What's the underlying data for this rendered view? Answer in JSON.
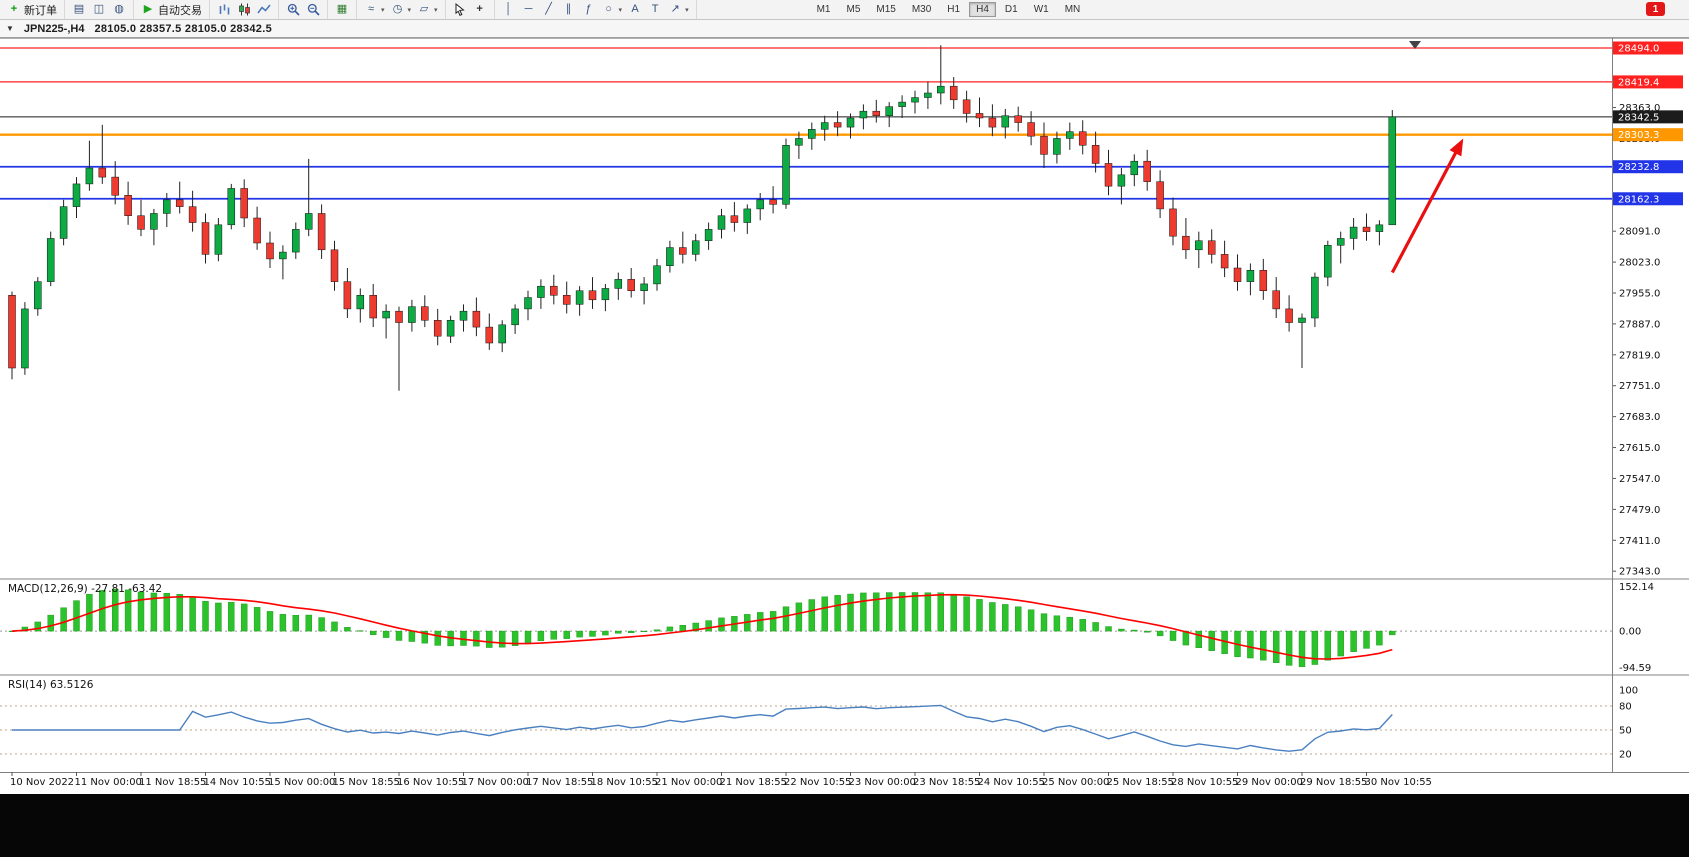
{
  "toolbar": {
    "new_order_label": "新订单",
    "auto_trading_label": "自动交易",
    "notification_count": "1",
    "active_timeframe": "H4",
    "timeframes": [
      "M1",
      "M5",
      "M15",
      "M30",
      "H1",
      "H4",
      "D1",
      "W1",
      "MN"
    ],
    "groups": [
      [
        {
          "name": "new-order",
          "glyph": "+",
          "color": "#0c9a0c",
          "label": "新订单"
        }
      ],
      [
        {
          "name": "print",
          "glyph": "▤"
        },
        {
          "name": "print-preview",
          "glyph": "◫"
        },
        {
          "name": "market-overview",
          "glyph": "◍"
        }
      ],
      [
        {
          "name": "auto-trading",
          "glyph": "▶",
          "color": "#1fa41f",
          "label": "自动交易"
        }
      ],
      [
        {
          "name": "bar-chart",
          "svg": "bars"
        },
        {
          "name": "candle-chart",
          "svg": "candles"
        },
        {
          "name": "line-chart",
          "svg": "line"
        }
      ],
      [
        {
          "name": "zoom-in",
          "svg": "zoom-in"
        },
        {
          "name": "zoom-out",
          "svg": "zoom-out"
        }
      ],
      [
        {
          "name": "tile-windows",
          "glyph": "▦",
          "color": "#2d7d2d"
        }
      ],
      [
        {
          "name": "indicators",
          "glyph": "≈",
          "dropdown": true
        },
        {
          "name": "periods",
          "glyph": "◷",
          "dropdown": true
        },
        {
          "name": "templates",
          "glyph": "▱",
          "dropdown": true
        }
      ],
      [
        {
          "name": "cursor",
          "svg": "cursor"
        },
        {
          "name": "crosshair",
          "glyph": "+",
          "color": "#333333"
        }
      ],
      [
        {
          "name": "vertical-line",
          "glyph": "│"
        },
        {
          "name": "horizontal-line",
          "glyph": "─"
        },
        {
          "name": "trendline",
          "glyph": "╱"
        },
        {
          "name": "channel",
          "glyph": "∥"
        },
        {
          "name": "fibonacci",
          "glyph": "ƒ"
        },
        {
          "name": "shapes",
          "glyph": "○",
          "dropdown": true
        },
        {
          "name": "text",
          "glyph": "A"
        },
        {
          "name": "text-label",
          "glyph": "T"
        },
        {
          "name": "arrows",
          "glyph": "↗",
          "dropdown": true
        }
      ]
    ],
    "one_click_glyph": "▼"
  },
  "chart_header": {
    "symbol_period": "JPN225-,H4",
    "ohlc_text": "28105.0 28357.5 28105.0 28342.5"
  },
  "colors": {
    "candle_up": "#0cab44",
    "candle_down": "#ee3b30",
    "macd_bar": "#2cc22c",
    "macd_signal": "#ff0000",
    "rsi_line": "#4a80c0"
  },
  "chart_data": {
    "type": "candlestick",
    "symbol": "JPN225-",
    "period": "H4",
    "ohlc_current": {
      "open": 28105.0,
      "high": 28357.5,
      "low": 28105.0,
      "close": 28342.5
    },
    "price_axis_ticks": [
      "28363.0",
      "28295.0",
      "28227.0",
      "28159.0",
      "28091.0",
      "28023.0",
      "27955.0",
      "27887.0",
      "27819.0",
      "27751.0",
      "27683.0",
      "27615.0",
      "27547.0",
      "27479.0",
      "27411.0",
      "27343.0"
    ],
    "levels": [
      {
        "price": 28494.0,
        "label": "28494.0",
        "color": "#ff2020",
        "width": 1.2
      },
      {
        "price": 28419.4,
        "label": "28419.4",
        "color": "#ff2020",
        "width": 1.2
      },
      {
        "price": 28342.5,
        "label": "28342.5",
        "color": "#1c1c1c",
        "width": 1.0
      },
      {
        "price": 28303.3,
        "label": "28303.3",
        "color": "#ff9800",
        "width": 2.4
      },
      {
        "price": 28232.8,
        "label": "28232.8",
        "color": "#2234e8",
        "width": 1.8
      },
      {
        "price": 28162.3,
        "label": "28162.3",
        "color": "#2234e8",
        "width": 1.8
      }
    ],
    "time_labels": [
      "10 Nov 2022",
      "11 Nov 00:00",
      "11 Nov 18:55",
      "14 Nov 10:55",
      "15 Nov 00:00",
      "15 Nov 18:55",
      "16 Nov 10:55",
      "17 Nov 00:00",
      "17 Nov 18:55",
      "18 Nov 10:55",
      "21 Nov 00:00",
      "21 Nov 18:55",
      "22 Nov 10:55",
      "23 Nov 00:00",
      "23 Nov 18:55",
      "24 Nov 10:55",
      "25 Nov 00:00",
      "25 Nov 18:55",
      "28 Nov 10:55",
      "29 Nov 00:00",
      "29 Nov 18:55",
      "30 Nov 10:55"
    ],
    "indicators": {
      "macd": {
        "name": "MACD(12,26,9)",
        "value_main": "-27.81",
        "value_signal": "-63.42",
        "axis": [
          "152.14",
          "0.00",
          "-94.59"
        ],
        "fast": 12,
        "slow": 26,
        "signal_period": 9
      },
      "rsi": {
        "name": "RSI(14)",
        "value": "63.5126",
        "axis": [
          "100",
          "80",
          "50",
          "20"
        ],
        "levels": [
          80,
          50,
          20
        ],
        "period": 14
      }
    },
    "annotation_arrow": {
      "from_index": 107,
      "from_price": 28000,
      "to_index": 112.5,
      "to_price": 28295,
      "color": "#e81010"
    },
    "candles": [
      [
        27950,
        27958,
        27765,
        27790
      ],
      [
        27790,
        27935,
        27775,
        27920
      ],
      [
        27920,
        27990,
        27905,
        27980
      ],
      [
        27980,
        28090,
        27970,
        28075
      ],
      [
        28075,
        28160,
        28060,
        28145
      ],
      [
        28145,
        28210,
        28120,
        28195
      ],
      [
        28195,
        28290,
        28180,
        28230
      ],
      [
        28230,
        28325,
        28195,
        28210
      ],
      [
        28210,
        28245,
        28150,
        28170
      ],
      [
        28170,
        28200,
        28105,
        28125
      ],
      [
        28125,
        28160,
        28080,
        28095
      ],
      [
        28095,
        28140,
        28060,
        28130
      ],
      [
        28130,
        28175,
        28100,
        28160
      ],
      [
        28160,
        28200,
        28130,
        28145
      ],
      [
        28145,
        28180,
        28090,
        28110
      ],
      [
        28110,
        28130,
        28020,
        28040
      ],
      [
        28040,
        28120,
        28025,
        28105
      ],
      [
        28105,
        28195,
        28095,
        28185
      ],
      [
        28185,
        28205,
        28100,
        28120
      ],
      [
        28120,
        28145,
        28050,
        28065
      ],
      [
        28065,
        28090,
        28010,
        28030
      ],
      [
        28030,
        28060,
        27985,
        28045
      ],
      [
        28045,
        28110,
        28030,
        28095
      ],
      [
        28095,
        28250,
        28080,
        28130
      ],
      [
        28130,
        28150,
        28030,
        28050
      ],
      [
        28050,
        28070,
        27960,
        27980
      ],
      [
        27980,
        28010,
        27900,
        27920
      ],
      [
        27920,
        27965,
        27890,
        27950
      ],
      [
        27950,
        27975,
        27880,
        27900
      ],
      [
        27900,
        27930,
        27855,
        27915
      ],
      [
        27915,
        27925,
        27740,
        27890
      ],
      [
        27890,
        27940,
        27870,
        27925
      ],
      [
        27925,
        27950,
        27880,
        27895
      ],
      [
        27895,
        27920,
        27840,
        27860
      ],
      [
        27860,
        27905,
        27845,
        27895
      ],
      [
        27895,
        27930,
        27870,
        27915
      ],
      [
        27915,
        27945,
        27860,
        27880
      ],
      [
        27880,
        27910,
        27830,
        27845
      ],
      [
        27845,
        27895,
        27825,
        27885
      ],
      [
        27885,
        27930,
        27865,
        27920
      ],
      [
        27920,
        27960,
        27895,
        27945
      ],
      [
        27945,
        27985,
        27920,
        27970
      ],
      [
        27970,
        27995,
        27930,
        27950
      ],
      [
        27950,
        27980,
        27910,
        27930
      ],
      [
        27930,
        27970,
        27905,
        27960
      ],
      [
        27960,
        27990,
        27920,
        27940
      ],
      [
        27940,
        27975,
        27915,
        27965
      ],
      [
        27965,
        28000,
        27940,
        27985
      ],
      [
        27985,
        28010,
        27945,
        27960
      ],
      [
        27960,
        27990,
        27930,
        27975
      ],
      [
        27975,
        28030,
        27960,
        28015
      ],
      [
        28015,
        28070,
        28000,
        28055
      ],
      [
        28055,
        28090,
        28020,
        28040
      ],
      [
        28040,
        28085,
        28025,
        28070
      ],
      [
        28070,
        28110,
        28050,
        28095
      ],
      [
        28095,
        28140,
        28075,
        28125
      ],
      [
        28125,
        28155,
        28090,
        28110
      ],
      [
        28110,
        28150,
        28085,
        28140
      ],
      [
        28140,
        28175,
        28115,
        28160
      ],
      [
        28160,
        28190,
        28130,
        28150
      ],
      [
        28150,
        28295,
        28140,
        28280
      ],
      [
        28280,
        28310,
        28250,
        28295
      ],
      [
        28295,
        28330,
        28270,
        28315
      ],
      [
        28315,
        28345,
        28290,
        28330
      ],
      [
        28330,
        28355,
        28300,
        28320
      ],
      [
        28320,
        28350,
        28295,
        28340
      ],
      [
        28340,
        28370,
        28315,
        28355
      ],
      [
        28355,
        28380,
        28330,
        28345
      ],
      [
        28345,
        28375,
        28320,
        28365
      ],
      [
        28365,
        28390,
        28340,
        28375
      ],
      [
        28375,
        28400,
        28350,
        28385
      ],
      [
        28385,
        28420,
        28360,
        28395
      ],
      [
        28395,
        28500,
        28370,
        28410
      ],
      [
        28410,
        28430,
        28360,
        28380
      ],
      [
        28380,
        28400,
        28330,
        28350
      ],
      [
        28350,
        28385,
        28320,
        28340
      ],
      [
        28340,
        28370,
        28300,
        28320
      ],
      [
        28320,
        28360,
        28295,
        28345
      ],
      [
        28345,
        28365,
        28310,
        28330
      ],
      [
        28330,
        28355,
        28280,
        28300
      ],
      [
        28300,
        28330,
        28230,
        28260
      ],
      [
        28260,
        28310,
        28240,
        28295
      ],
      [
        28295,
        28330,
        28270,
        28310
      ],
      [
        28310,
        28335,
        28260,
        28280
      ],
      [
        28280,
        28310,
        28220,
        28240
      ],
      [
        28240,
        28270,
        28170,
        28190
      ],
      [
        28190,
        28230,
        28150,
        28215
      ],
      [
        28215,
        28260,
        28190,
        28245
      ],
      [
        28245,
        28270,
        28180,
        28200
      ],
      [
        28200,
        28225,
        28120,
        28140
      ],
      [
        28140,
        28165,
        28060,
        28080
      ],
      [
        28080,
        28120,
        28030,
        28050
      ],
      [
        28050,
        28090,
        28010,
        28070
      ],
      [
        28070,
        28095,
        28020,
        28040
      ],
      [
        28040,
        28070,
        27990,
        28010
      ],
      [
        28010,
        28040,
        27960,
        27980
      ],
      [
        27980,
        28020,
        27950,
        28005
      ],
      [
        28005,
        28030,
        27940,
        27960
      ],
      [
        27960,
        27990,
        27900,
        27920
      ],
      [
        27920,
        27950,
        27870,
        27890
      ],
      [
        27890,
        27910,
        27790,
        27900
      ],
      [
        27900,
        28000,
        27880,
        27990
      ],
      [
        27990,
        28070,
        27970,
        28060
      ],
      [
        28060,
        28090,
        28020,
        28075
      ],
      [
        28075,
        28120,
        28050,
        28100
      ],
      [
        28100,
        28130,
        28070,
        28090
      ],
      [
        28090,
        28115,
        28060,
        28105
      ],
      [
        28105,
        28357.5,
        28105,
        28342.5
      ]
    ]
  }
}
